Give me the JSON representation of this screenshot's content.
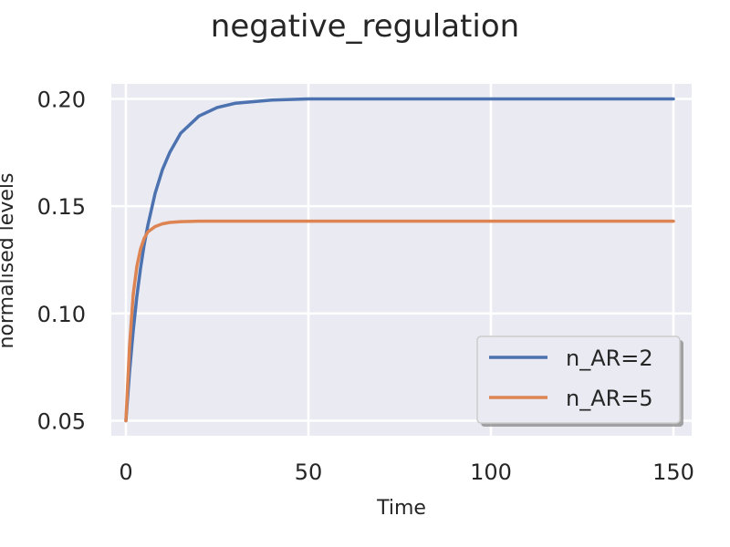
{
  "chart_data": {
    "type": "line",
    "title": "negative_regulation",
    "xlabel": "Time",
    "ylabel": "normalised levels",
    "xlim": [
      -4,
      155
    ],
    "ylim": [
      0.043,
      0.207
    ],
    "xticks": [
      0,
      50,
      100,
      150
    ],
    "xtick_labels": [
      "0",
      "50",
      "100",
      "150"
    ],
    "yticks": [
      0.05,
      0.1,
      0.15,
      0.2
    ],
    "ytick_labels": [
      "0.05",
      "0.10",
      "0.15",
      "0.20"
    ],
    "grid": true,
    "legend_position": "lower-right",
    "series": [
      {
        "name": "n_AR=2",
        "color": "#4c72b0",
        "x": [
          0,
          1,
          2,
          3,
          4,
          5,
          6,
          8,
          10,
          12,
          15,
          20,
          25,
          30,
          40,
          50,
          75,
          100,
          125,
          150
        ],
        "y": [
          0.05,
          0.073,
          0.092,
          0.108,
          0.121,
          0.132,
          0.141,
          0.156,
          0.167,
          0.175,
          0.184,
          0.192,
          0.196,
          0.198,
          0.1995,
          0.2,
          0.2,
          0.2,
          0.2,
          0.2
        ]
      },
      {
        "name": "n_AR=5",
        "color": "#dd8452",
        "x": [
          0,
          1,
          2,
          3,
          4,
          5,
          6,
          8,
          10,
          12,
          15,
          20,
          30,
          50,
          75,
          100,
          125,
          150
        ],
        "y": [
          0.05,
          0.085,
          0.109,
          0.122,
          0.13,
          0.135,
          0.138,
          0.1405,
          0.1418,
          0.1424,
          0.1428,
          0.143,
          0.143,
          0.143,
          0.143,
          0.143,
          0.143,
          0.143
        ]
      }
    ]
  }
}
